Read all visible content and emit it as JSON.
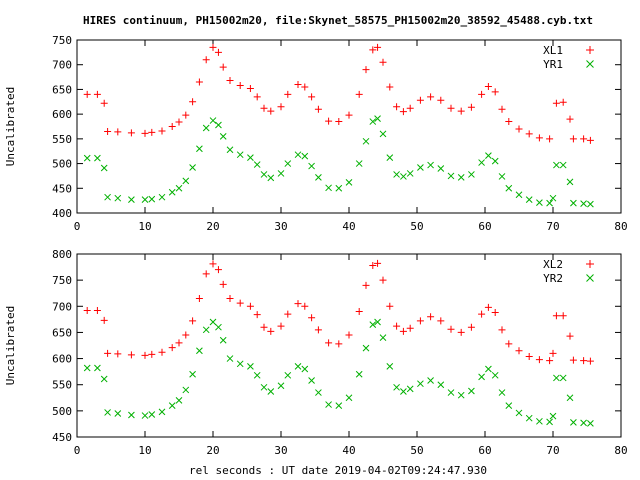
{
  "page": {
    "title": "HIRES continuum, PH15002m20, file:Skynet_58575_PH15002m20_38592_45488.cyb.txt",
    "xlabel": "rel seconds : UT date 2019-04-02T09:24:47.930"
  },
  "colors": {
    "red": "#ff0000",
    "green": "#00b000"
  },
  "chart_data": [
    {
      "type": "scatter",
      "title": "HIRES continuum, PH15002m20, file:Skynet_58575_PH15002m20_38592_45488.cyb.txt",
      "xlabel": "",
      "ylabel": "Uncalibrated",
      "xlim": [
        0,
        80
      ],
      "ylim": [
        400,
        750
      ],
      "xticks": [
        0,
        10,
        20,
        30,
        40,
        50,
        60,
        70,
        80
      ],
      "yticks": [
        400,
        450,
        500,
        550,
        600,
        650,
        700,
        750
      ],
      "legend": "top-right",
      "series": [
        {
          "name": "XL1",
          "marker": "plus",
          "color": "#ff0000",
          "points": [
            [
              1.5,
              640
            ],
            [
              3.0,
              640
            ],
            [
              4.0,
              622
            ],
            [
              4.5,
              565
            ],
            [
              6.0,
              564
            ],
            [
              8.0,
              562
            ],
            [
              10.0,
              561
            ],
            [
              11.0,
              563
            ],
            [
              12.5,
              566
            ],
            [
              14.0,
              575
            ],
            [
              15.0,
              584
            ],
            [
              16.0,
              598
            ],
            [
              17.0,
              625
            ],
            [
              18.0,
              665
            ],
            [
              19.0,
              710
            ],
            [
              20.0,
              735
            ],
            [
              20.8,
              725
            ],
            [
              21.5,
              695
            ],
            [
              22.5,
              668
            ],
            [
              24.0,
              658
            ],
            [
              25.5,
              652
            ],
            [
              26.5,
              635
            ],
            [
              27.5,
              612
            ],
            [
              28.5,
              606
            ],
            [
              30.0,
              615
            ],
            [
              31.0,
              640
            ],
            [
              32.5,
              660
            ],
            [
              33.5,
              655
            ],
            [
              34.5,
              635
            ],
            [
              35.5,
              610
            ],
            [
              37.0,
              586
            ],
            [
              38.5,
              585
            ],
            [
              40.0,
              598
            ],
            [
              41.5,
              640
            ],
            [
              42.5,
              690
            ],
            [
              43.5,
              730
            ],
            [
              44.2,
              735
            ],
            [
              45.0,
              705
            ],
            [
              46.0,
              655
            ],
            [
              47.0,
              615
            ],
            [
              48.0,
              605
            ],
            [
              49.0,
              612
            ],
            [
              50.5,
              628
            ],
            [
              52.0,
              635
            ],
            [
              53.5,
              628
            ],
            [
              55.0,
              612
            ],
            [
              56.5,
              606
            ],
            [
              58.0,
              614
            ],
            [
              59.5,
              640
            ],
            [
              60.5,
              656
            ],
            [
              61.5,
              645
            ],
            [
              62.5,
              610
            ],
            [
              63.5,
              585
            ],
            [
              65.0,
              570
            ],
            [
              66.5,
              560
            ],
            [
              68.0,
              552
            ],
            [
              69.5,
              550
            ],
            [
              70.5,
              622
            ],
            [
              71.5,
              624
            ],
            [
              72.5,
              590
            ],
            [
              73.0,
              550
            ],
            [
              74.5,
              550
            ],
            [
              75.5,
              547
            ]
          ]
        },
        {
          "name": "YR1",
          "marker": "cross",
          "color": "#00b000",
          "points": [
            [
              1.5,
              511
            ],
            [
              3.0,
              511
            ],
            [
              4.0,
              491
            ],
            [
              4.5,
              432
            ],
            [
              6.0,
              430
            ],
            [
              8.0,
              427
            ],
            [
              10.0,
              427
            ],
            [
              11.0,
              428
            ],
            [
              12.5,
              432
            ],
            [
              14.0,
              442
            ],
            [
              15.0,
              450
            ],
            [
              16.0,
              465
            ],
            [
              17.0,
              492
            ],
            [
              18.0,
              530
            ],
            [
              19.0,
              572
            ],
            [
              20.0,
              587
            ],
            [
              20.8,
              578
            ],
            [
              21.5,
              555
            ],
            [
              22.5,
              528
            ],
            [
              24.0,
              518
            ],
            [
              25.5,
              512
            ],
            [
              26.5,
              498
            ],
            [
              27.5,
              478
            ],
            [
              28.5,
              471
            ],
            [
              30.0,
              480
            ],
            [
              31.0,
              500
            ],
            [
              32.5,
              518
            ],
            [
              33.5,
              515
            ],
            [
              34.5,
              495
            ],
            [
              35.5,
              472
            ],
            [
              37.0,
              451
            ],
            [
              38.5,
              450
            ],
            [
              40.0,
              462
            ],
            [
              41.5,
              500
            ],
            [
              42.5,
              545
            ],
            [
              43.5,
              585
            ],
            [
              44.2,
              591
            ],
            [
              45.0,
              560
            ],
            [
              46.0,
              512
            ],
            [
              47.0,
              478
            ],
            [
              48.0,
              474
            ],
            [
              49.0,
              480
            ],
            [
              50.5,
              492
            ],
            [
              52.0,
              497
            ],
            [
              53.5,
              490
            ],
            [
              55.0,
              475
            ],
            [
              56.5,
              472
            ],
            [
              58.0,
              478
            ],
            [
              59.5,
              502
            ],
            [
              60.5,
              516
            ],
            [
              61.5,
              505
            ],
            [
              62.5,
              474
            ],
            [
              63.5,
              450
            ],
            [
              65.0,
              437
            ],
            [
              66.5,
              427
            ],
            [
              68.0,
              421
            ],
            [
              69.5,
              420
            ],
            [
              70.0,
              430
            ],
            [
              70.5,
              497
            ],
            [
              71.5,
              497
            ],
            [
              72.5,
              463
            ],
            [
              73.0,
              420
            ],
            [
              74.5,
              419
            ],
            [
              75.5,
              418
            ]
          ]
        }
      ]
    },
    {
      "type": "scatter",
      "title": "",
      "xlabel": "rel seconds : UT date 2019-04-02T09:24:47.930",
      "ylabel": "Uncalibrated",
      "xlim": [
        0,
        80
      ],
      "ylim": [
        450,
        800
      ],
      "xticks": [
        0,
        10,
        20,
        30,
        40,
        50,
        60,
        70,
        80
      ],
      "yticks": [
        450,
        500,
        550,
        600,
        650,
        700,
        750,
        800
      ],
      "legend": "top-right",
      "series": [
        {
          "name": "XL2",
          "marker": "plus",
          "color": "#ff0000",
          "points": [
            [
              1.5,
              692
            ],
            [
              3.0,
              692
            ],
            [
              4.0,
              673
            ],
            [
              4.5,
              610
            ],
            [
              6.0,
              609
            ],
            [
              8.0,
              607
            ],
            [
              10.0,
              606
            ],
            [
              11.0,
              608
            ],
            [
              12.5,
              612
            ],
            [
              14.0,
              621
            ],
            [
              15.0,
              630
            ],
            [
              16.0,
              645
            ],
            [
              17.0,
              672
            ],
            [
              18.0,
              715
            ],
            [
              19.0,
              762
            ],
            [
              20.0,
              781
            ],
            [
              20.8,
              770
            ],
            [
              21.5,
              742
            ],
            [
              22.5,
              715
            ],
            [
              24.0,
              706
            ],
            [
              25.5,
              700
            ],
            [
              26.5,
              684
            ],
            [
              27.5,
              660
            ],
            [
              28.5,
              652
            ],
            [
              30.0,
              662
            ],
            [
              31.0,
              685
            ],
            [
              32.5,
              705
            ],
            [
              33.5,
              700
            ],
            [
              34.5,
              678
            ],
            [
              35.5,
              655
            ],
            [
              37.0,
              630
            ],
            [
              38.5,
              628
            ],
            [
              40.0,
              645
            ],
            [
              41.5,
              690
            ],
            [
              42.5,
              740
            ],
            [
              43.5,
              778
            ],
            [
              44.2,
              782
            ],
            [
              45.0,
              750
            ],
            [
              46.0,
              700
            ],
            [
              47.0,
              662
            ],
            [
              48.0,
              652
            ],
            [
              49.0,
              658
            ],
            [
              50.5,
              672
            ],
            [
              52.0,
              680
            ],
            [
              53.5,
              672
            ],
            [
              55.0,
              656
            ],
            [
              56.5,
              650
            ],
            [
              58.0,
              660
            ],
            [
              59.5,
              685
            ],
            [
              60.5,
              698
            ],
            [
              61.5,
              688
            ],
            [
              62.5,
              655
            ],
            [
              63.5,
              628
            ],
            [
              65.0,
              615
            ],
            [
              66.5,
              604
            ],
            [
              68.0,
              598
            ],
            [
              69.5,
              596
            ],
            [
              70.0,
              610
            ],
            [
              70.5,
              682
            ],
            [
              71.5,
              682
            ],
            [
              72.5,
              643
            ],
            [
              73.0,
              597
            ],
            [
              74.5,
              596
            ],
            [
              75.5,
              595
            ]
          ]
        },
        {
          "name": "YR2",
          "marker": "cross",
          "color": "#00b000",
          "points": [
            [
              1.5,
              582
            ],
            [
              3.0,
              582
            ],
            [
              4.0,
              561
            ],
            [
              4.5,
              497
            ],
            [
              6.0,
              495
            ],
            [
              8.0,
              492
            ],
            [
              10.0,
              491
            ],
            [
              11.0,
              493
            ],
            [
              12.5,
              498
            ],
            [
              14.0,
              510
            ],
            [
              15.0,
              520
            ],
            [
              16.0,
              540
            ],
            [
              17.0,
              570
            ],
            [
              18.0,
              615
            ],
            [
              19.0,
              655
            ],
            [
              20.0,
              670
            ],
            [
              20.8,
              660
            ],
            [
              21.5,
              635
            ],
            [
              22.5,
              600
            ],
            [
              24.0,
              590
            ],
            [
              25.5,
              585
            ],
            [
              26.5,
              568
            ],
            [
              27.5,
              545
            ],
            [
              28.5,
              537
            ],
            [
              30.0,
              548
            ],
            [
              31.0,
              568
            ],
            [
              32.5,
              585
            ],
            [
              33.5,
              580
            ],
            [
              34.5,
              558
            ],
            [
              35.5,
              535
            ],
            [
              37.0,
              512
            ],
            [
              38.5,
              510
            ],
            [
              40.0,
              525
            ],
            [
              41.5,
              570
            ],
            [
              42.5,
              620
            ],
            [
              43.5,
              665
            ],
            [
              44.2,
              670
            ],
            [
              45.0,
              640
            ],
            [
              46.0,
              585
            ],
            [
              47.0,
              545
            ],
            [
              48.0,
              537
            ],
            [
              49.0,
              542
            ],
            [
              50.5,
              552
            ],
            [
              52.0,
              558
            ],
            [
              53.5,
              550
            ],
            [
              55.0,
              535
            ],
            [
              56.5,
              530
            ],
            [
              58.0,
              538
            ],
            [
              59.5,
              565
            ],
            [
              60.5,
              580
            ],
            [
              61.5,
              568
            ],
            [
              62.5,
              535
            ],
            [
              63.5,
              510
            ],
            [
              65.0,
              496
            ],
            [
              66.5,
              486
            ],
            [
              68.0,
              480
            ],
            [
              69.5,
              479
            ],
            [
              70.0,
              490
            ],
            [
              70.5,
              563
            ],
            [
              71.5,
              563
            ],
            [
              72.5,
              525
            ],
            [
              73.0,
              478
            ],
            [
              74.5,
              477
            ],
            [
              75.5,
              476
            ]
          ]
        }
      ]
    }
  ]
}
